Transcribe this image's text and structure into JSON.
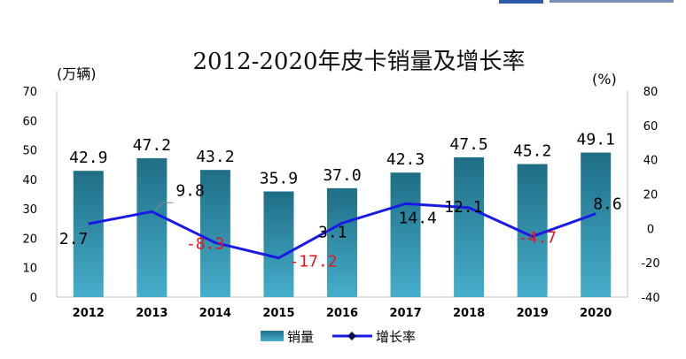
{
  "chart_data": {
    "type": "bar",
    "title": "2012-2020年皮卡销量及增长率",
    "ylabel_left": "(万辆)",
    "ylabel_right": "(%)",
    "categories": [
      "2012",
      "2013",
      "2014",
      "2015",
      "2016",
      "2017",
      "2018",
      "2019",
      "2020"
    ],
    "series": [
      {
        "name": "销量",
        "type": "bar",
        "axis": "left",
        "values": [
          42.9,
          47.2,
          43.2,
          35.9,
          37.0,
          42.3,
          47.5,
          45.2,
          49.1
        ],
        "labels": [
          "42.9",
          "47.2",
          "43.2",
          "35.9",
          "37.0",
          "42.3",
          "47.5",
          "45.2",
          "49.1"
        ]
      },
      {
        "name": "增长率",
        "type": "line",
        "axis": "right",
        "values": [
          2.7,
          9.8,
          -8.3,
          -17.2,
          3.1,
          14.4,
          12.1,
          -4.7,
          8.6
        ],
        "labels": [
          "2.7",
          "9.8",
          "-8.3",
          "-17.2",
          "3.1",
          "14.4",
          "12.1",
          "-4.7",
          "8.6"
        ]
      }
    ],
    "ylim_left": [
      0,
      70
    ],
    "yticks_left": [
      "0",
      "10",
      "20",
      "30",
      "40",
      "50",
      "60",
      "70"
    ],
    "ylim_right": [
      -40,
      80
    ],
    "yticks_right": [
      "-40",
      "-20",
      "0",
      "20",
      "40",
      "60",
      "80"
    ],
    "legend": [
      "销量",
      "增长率"
    ],
    "legend_position": "bottom-center",
    "colors": {
      "bar_top": "#1f6e86",
      "bar_bottom": "#46aecb",
      "line": "#1a1ae6",
      "negative_label": "#e8141e"
    }
  }
}
